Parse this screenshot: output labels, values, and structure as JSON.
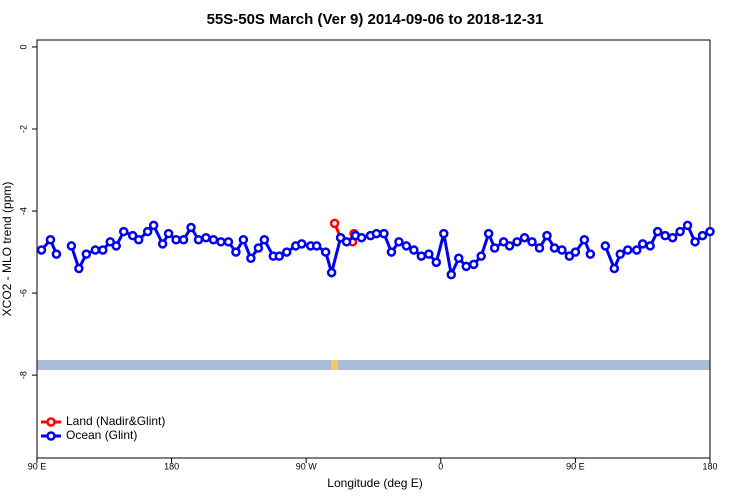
{
  "chart_data": {
    "type": "line",
    "title": "55S-50S March (Ver 9)   2014-09-06 to 2018-12-31",
    "x_label": "Longitude (deg E)",
    "y_label": "XCO2 - MLO trend (ppm)",
    "xlim": [
      90,
      540
    ],
    "xticks": [
      {
        "value": 90,
        "label": "90 E"
      },
      180,
      {
        "value": 270,
        "label": "90 W"
      },
      {
        "value": 360,
        "label": "0"
      },
      {
        "value": 450,
        "label": "90 E"
      },
      {
        "value": 540,
        "label": "180"
      }
    ],
    "ylim": [
      -10.02,
      0.17
    ],
    "yticks": [
      0,
      -2,
      -4,
      -6,
      -8
    ],
    "legend": "bottom-left",
    "series": [
      {
        "name": "Land (Nadir&Glint)",
        "color": "#ff0000",
        "x": [
          289,
          293,
          297,
          301,
          302
        ],
        "values": [
          -4.3,
          -4.65,
          null,
          -4.75,
          -4.55
        ]
      },
      {
        "name": "Ocean (Glint)",
        "color": "#0000ee",
        "x": [
          93,
          99,
          103,
          108,
          113,
          118,
          123,
          129,
          134,
          139,
          143,
          148,
          154,
          158,
          164,
          168,
          174,
          178,
          183,
          188,
          193,
          198,
          203,
          208,
          213,
          218,
          223,
          228,
          233,
          238,
          242,
          248,
          252,
          257,
          263,
          267,
          273,
          277,
          283,
          287,
          293,
          297,
          303,
          307,
          313,
          317,
          322,
          327,
          332,
          337,
          342,
          347,
          352,
          357,
          362,
          367,
          372,
          377,
          382,
          387,
          392,
          396,
          402,
          406,
          411,
          416,
          421,
          426,
          431,
          436,
          441,
          446,
          450,
          456,
          460,
          466,
          470,
          476,
          480,
          485,
          491,
          495,
          500,
          505,
          510,
          515,
          520,
          525,
          530,
          535,
          540
        ],
        "values": [
          -4.95,
          -4.7,
          -5.05,
          null,
          -4.85,
          -5.4,
          -5.05,
          -4.95,
          -4.95,
          -4.75,
          -4.85,
          -4.5,
          -4.6,
          -4.7,
          -4.5,
          -4.35,
          -4.8,
          -4.55,
          -4.7,
          -4.7,
          -4.4,
          -4.7,
          -4.65,
          -4.7,
          -4.75,
          -4.75,
          -5.0,
          -4.7,
          -5.15,
          -4.9,
          -4.7,
          -5.1,
          -5.1,
          -5.0,
          -4.85,
          -4.8,
          -4.85,
          -4.85,
          -5.0,
          -5.5,
          -4.65,
          -4.75,
          -4.6,
          -4.65,
          -4.6,
          -4.55,
          -4.55,
          -5.0,
          -4.75,
          -4.85,
          -4.95,
          -5.1,
          -5.05,
          -5.25,
          -4.55,
          -5.55,
          -5.15,
          -5.35,
          -5.3,
          -5.1,
          -4.55,
          -4.9,
          -4.75,
          -4.85,
          -4.75,
          -4.65,
          -4.75,
          -4.9,
          -4.6,
          -4.9,
          -4.95,
          -5.1,
          -5.0,
          -4.7,
          -5.05,
          null,
          -4.85,
          -5.4,
          -5.05,
          -4.95,
          -4.95,
          -4.8,
          -4.85,
          -4.5,
          -4.6,
          -4.65,
          -4.5,
          -4.35,
          -4.75,
          -4.6,
          -4.5
        ]
      }
    ]
  }
}
